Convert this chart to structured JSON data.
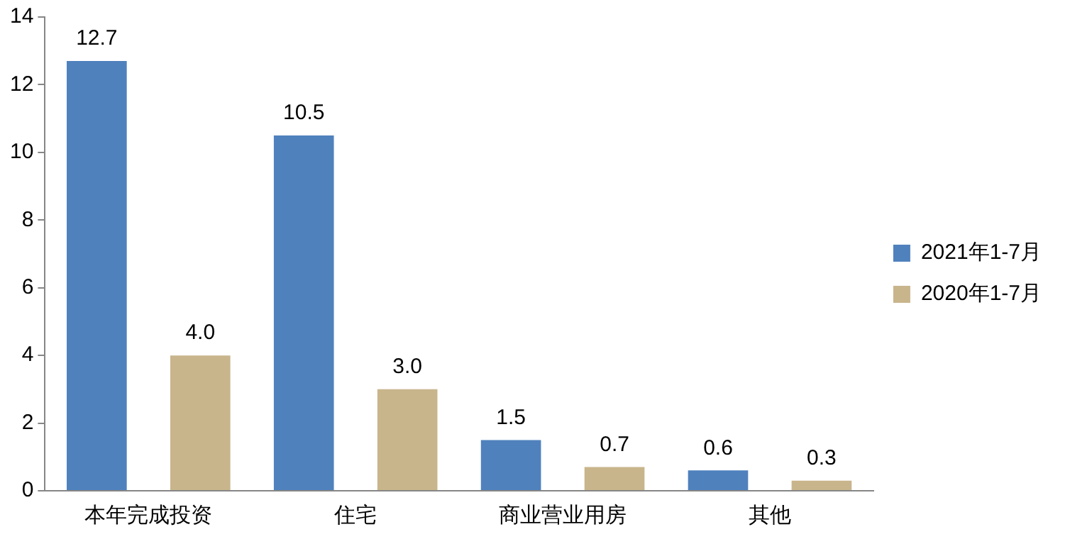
{
  "chart_data": {
    "type": "bar",
    "categories": [
      "本年完成投资",
      "住宅",
      "商业营业用房",
      "其他"
    ],
    "series": [
      {
        "name": "2021年1-7月",
        "color": "#4f81bd",
        "values": [
          12.7,
          10.5,
          1.5,
          0.6
        ]
      },
      {
        "name": "2020年1-7月",
        "color": "#c9b58c",
        "values": [
          4.0,
          3.0,
          0.7,
          0.3
        ]
      }
    ],
    "value_labels": [
      [
        "12.7",
        "10.5",
        "1.5",
        "0.6"
      ],
      [
        "4.0",
        "3.0",
        "0.7",
        "0.3"
      ]
    ],
    "ylim": [
      0,
      14
    ],
    "yticks": [
      0,
      2,
      4,
      6,
      8,
      10,
      12,
      14
    ],
    "grid": false,
    "legend": "right"
  }
}
